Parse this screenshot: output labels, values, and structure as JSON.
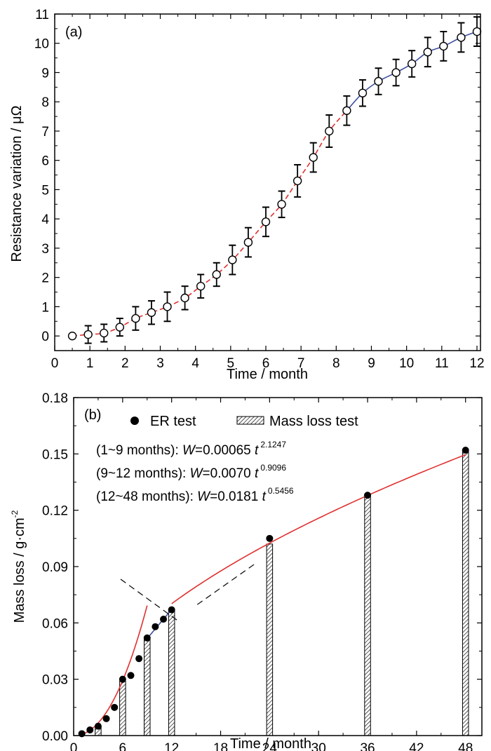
{
  "chart_data": [
    {
      "type": "scatter",
      "panel_label": "(a)",
      "xlabel": "Time / month",
      "ylabel": "Resistance variation  / μΩ",
      "xlim": [
        0,
        12.1
      ],
      "ylim": [
        -0.5,
        11
      ],
      "xticks": [
        0,
        1,
        2,
        3,
        4,
        5,
        6,
        7,
        8,
        9,
        10,
        11,
        12
      ],
      "yticks": [
        0,
        1,
        2,
        3,
        4,
        5,
        6,
        7,
        8,
        9,
        10,
        11
      ],
      "series": [
        {
          "name": "Resistance variation",
          "marker": "open-circle",
          "points": [
            {
              "x": 0.5,
              "y": 0.0,
              "err": 0.0
            },
            {
              "x": 0.95,
              "y": 0.05,
              "err": 0.3
            },
            {
              "x": 1.4,
              "y": 0.1,
              "err": 0.3
            },
            {
              "x": 1.85,
              "y": 0.3,
              "err": 0.3
            },
            {
              "x": 2.3,
              "y": 0.6,
              "err": 0.4
            },
            {
              "x": 2.75,
              "y": 0.8,
              "err": 0.4
            },
            {
              "x": 3.2,
              "y": 1.0,
              "err": 0.5
            },
            {
              "x": 3.7,
              "y": 1.3,
              "err": 0.4
            },
            {
              "x": 4.15,
              "y": 1.7,
              "err": 0.4
            },
            {
              "x": 4.6,
              "y": 2.1,
              "err": 0.4
            },
            {
              "x": 5.05,
              "y": 2.6,
              "err": 0.5
            },
            {
              "x": 5.5,
              "y": 3.2,
              "err": 0.5
            },
            {
              "x": 6.0,
              "y": 3.9,
              "err": 0.5
            },
            {
              "x": 6.45,
              "y": 4.5,
              "err": 0.45
            },
            {
              "x": 6.9,
              "y": 5.3,
              "err": 0.55
            },
            {
              "x": 7.35,
              "y": 6.1,
              "err": 0.5
            },
            {
              "x": 7.8,
              "y": 7.0,
              "err": 0.55
            },
            {
              "x": 8.3,
              "y": 7.7,
              "err": 0.5
            },
            {
              "x": 8.75,
              "y": 8.3,
              "err": 0.45
            },
            {
              "x": 9.2,
              "y": 8.7,
              "err": 0.45
            },
            {
              "x": 9.7,
              "y": 9.0,
              "err": 0.45
            },
            {
              "x": 10.15,
              "y": 9.3,
              "err": 0.45
            },
            {
              "x": 10.6,
              "y": 9.7,
              "err": 0.5
            },
            {
              "x": 11.05,
              "y": 9.9,
              "err": 0.5
            },
            {
              "x": 11.55,
              "y": 10.2,
              "err": 0.5
            },
            {
              "x": 12.0,
              "y": 10.4,
              "err": 0.5
            }
          ]
        }
      ],
      "fit_curves": [
        {
          "name": "fit 0.5–8.3 months",
          "style": "dashed",
          "color": "#e0302f",
          "x_from": 0.5,
          "x_to": 8.3
        },
        {
          "name": "fit 8.3–12 months",
          "style": "solid",
          "color": "#3b4f9e",
          "x_from": 8.3,
          "x_to": 12.0
        }
      ]
    },
    {
      "type": "bar",
      "panel_label": "(b)",
      "xlabel": "Time / month",
      "ylabel": "Mass loss  / g·cm",
      "ylabel_sup": "-2",
      "xlim": [
        0,
        50
      ],
      "ylim": [
        0,
        0.18
      ],
      "xticks": [
        0,
        6,
        12,
        18,
        24,
        30,
        36,
        42,
        48
      ],
      "yticks": [
        "0.00",
        "0.03",
        "0.06",
        "0.09",
        "0.12",
        "0.15",
        "0.18"
      ],
      "legend": {
        "placement": "top-left",
        "entries": [
          {
            "label": "ER test",
            "marker": "filled-circle"
          },
          {
            "label": "Mass loss test",
            "marker": "hatched-bar"
          }
        ]
      },
      "equations": [
        {
          "range": "(1~9 months): ",
          "var": "W",
          "value": "=0.00065 ",
          "tvar": "t",
          "exp": "2.1247"
        },
        {
          "range": "(9~12 months): ",
          "var": "W",
          "value": "=0.0070 ",
          "tvar": "t",
          "exp": "0.9096"
        },
        {
          "range": "(12~48 months): ",
          "var": "W",
          "value": "=0.0181 ",
          "tvar": "t",
          "exp": "0.5456"
        }
      ],
      "mass_loss_bars": [
        {
          "x": 3,
          "value": 0.005
        },
        {
          "x": 6,
          "value": 0.029
        },
        {
          "x": 9,
          "value": 0.052
        },
        {
          "x": 12,
          "value": 0.067
        },
        {
          "x": 24,
          "value": 0.102
        },
        {
          "x": 36,
          "value": 0.128
        },
        {
          "x": 48,
          "value": 0.152
        }
      ],
      "er_points": [
        {
          "x": 1,
          "y": 0.001
        },
        {
          "x": 2,
          "y": 0.003
        },
        {
          "x": 3,
          "y": 0.005
        },
        {
          "x": 4,
          "y": 0.009
        },
        {
          "x": 5,
          "y": 0.015
        },
        {
          "x": 6,
          "y": 0.03
        },
        {
          "x": 7,
          "y": 0.032
        },
        {
          "x": 8,
          "y": 0.041
        },
        {
          "x": 9,
          "y": 0.052
        },
        {
          "x": 10,
          "y": 0.058
        },
        {
          "x": 11,
          "y": 0.062
        },
        {
          "x": 12,
          "y": 0.067
        },
        {
          "x": 24,
          "y": 0.105
        },
        {
          "x": 36,
          "y": 0.128
        },
        {
          "x": 48,
          "y": 0.152
        }
      ],
      "fit_curves": [
        {
          "name": "1~9 months",
          "color": "#e0302f",
          "a": 0.00065,
          "b": 2.1247,
          "x_from": 1,
          "x_to": 9
        },
        {
          "name": "9~12 months",
          "color": "#3b4f9e",
          "a": 0.007,
          "b": 0.9096,
          "x_from": 9,
          "x_to": 12
        },
        {
          "name": "12~48 months",
          "color": "#e0302f",
          "a": 0.0181,
          "b": 0.5456,
          "x_from": 12,
          "x_to": 48
        }
      ]
    }
  ]
}
